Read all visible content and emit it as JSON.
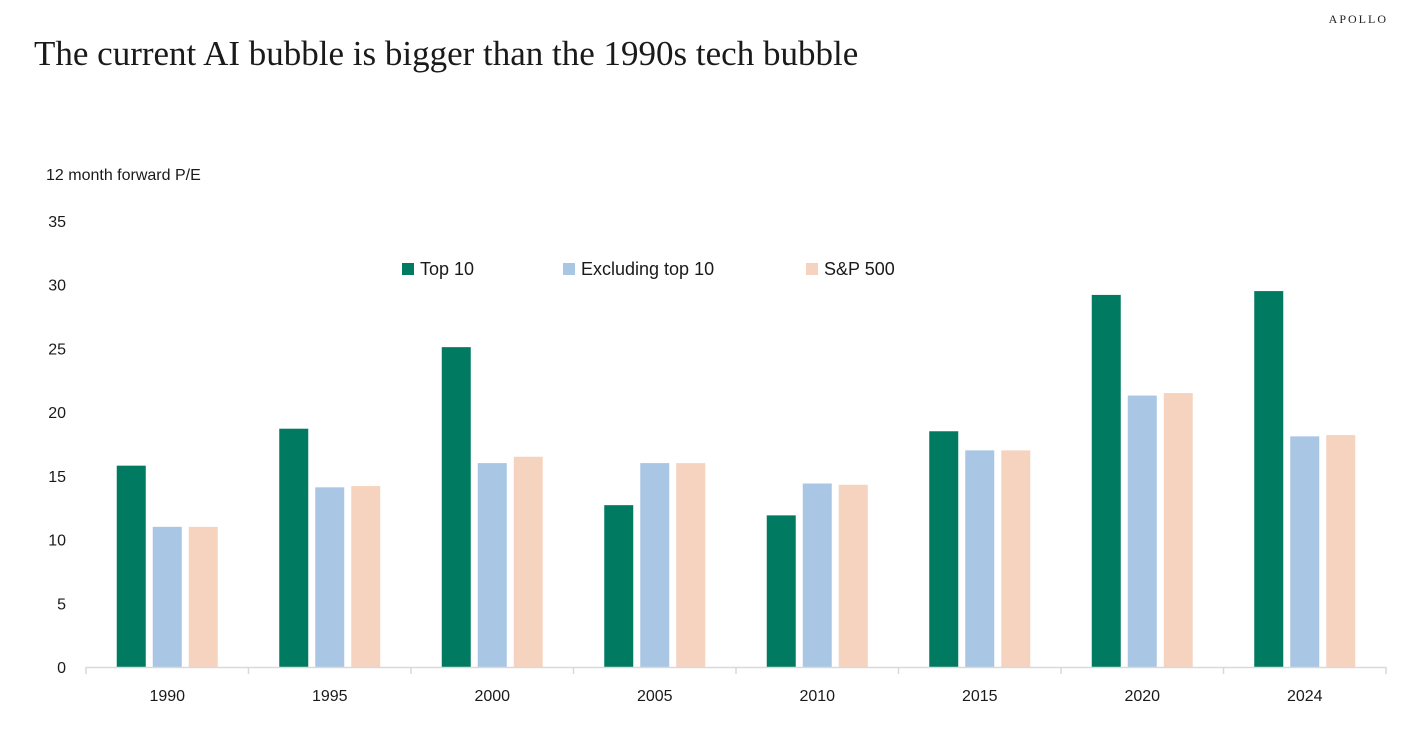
{
  "brand": "APOLLO",
  "colors": {
    "top10": "#007a60",
    "excluding_top10": "#a9c6e4",
    "sp500": "#f6d3be",
    "axis": "#d9d9d9",
    "text": "#1a1a1a"
  },
  "chart_data": {
    "type": "bar",
    "title": "The current AI bubble is bigger than the 1990s tech bubble",
    "ylabel": "12 month forward P/E",
    "xlabel": "",
    "ylim": [
      0,
      35
    ],
    "yticks": [
      0,
      5,
      10,
      15,
      20,
      25,
      30,
      35
    ],
    "grid": false,
    "legend_position": "top-center",
    "categories": [
      "1990",
      "1995",
      "2000",
      "2005",
      "2010",
      "2015",
      "2020",
      "2024"
    ],
    "series": [
      {
        "name": "Top 10",
        "color_key": "top10",
        "values": [
          15.8,
          18.7,
          25.1,
          12.7,
          11.9,
          18.5,
          29.2,
          29.5
        ]
      },
      {
        "name": "Excluding top 10",
        "color_key": "excluding_top10",
        "values": [
          11.0,
          14.1,
          16.0,
          16.0,
          14.4,
          17.0,
          21.3,
          18.1
        ]
      },
      {
        "name": "S&P 500",
        "color_key": "sp500",
        "values": [
          11.0,
          14.2,
          16.5,
          16.0,
          14.3,
          17.0,
          21.5,
          18.2
        ]
      }
    ]
  }
}
